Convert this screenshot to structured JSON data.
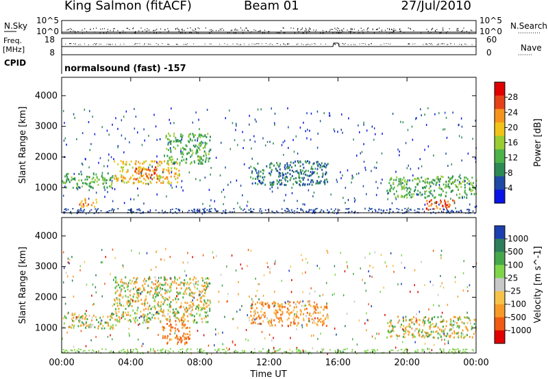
{
  "header": {
    "station": "King Salmon (fitACF)",
    "beam": "Beam 01",
    "date": "27/Jul/2010"
  },
  "strips": {
    "nsky_label": "N.Sky",
    "nsky_tick_top": "10^5",
    "nsky_tick_bottom": "10^0",
    "nsearch_label": "N.Search",
    "nsearch_tick_top": "10^5",
    "nsearch_tick_bottom": "10^0",
    "freq_label": "Freq.",
    "freq_unit": "[MHz]",
    "freq_tick_top": "18",
    "freq_tick_bottom": "8",
    "nave_label": "Nave",
    "nave_tick_top": "60",
    "nave_tick_bottom": "0",
    "cpid_label": "CPID",
    "cpid_text": "normalsound (fast) -157"
  },
  "chart_data": [
    {
      "type": "heatmap",
      "title": "",
      "xlabel": "Time UT",
      "ylabel": "Slant Range [km]",
      "x_ticks": [
        "00:00",
        "04:00",
        "08:00",
        "12:00",
        "16:00",
        "20:00",
        "00:00"
      ],
      "xlim_hours": [
        0,
        24
      ],
      "y_ticks": [
        1000,
        2000,
        3000,
        4000
      ],
      "ylim": [
        180,
        4600
      ],
      "grid": false,
      "colorbar": {
        "label": "Power [dB]",
        "ticks": [
          4,
          8,
          12,
          16,
          20,
          24,
          28
        ],
        "range": [
          0,
          32
        ],
        "colors": [
          "#0a14e6",
          "#1f4aa6",
          "#2e8a55",
          "#4cb24a",
          "#9acd32",
          "#f0c418",
          "#f7941d",
          "#e6421a",
          "#e00000"
        ]
      },
      "echo_regions": [
        {
          "t_start": 0.0,
          "t_end": 3.0,
          "range_low": 1000,
          "range_high": 1500,
          "value_typical": 12
        },
        {
          "t_start": 3.0,
          "t_end": 6.8,
          "range_low": 1150,
          "range_high": 1900,
          "value_typical": 20
        },
        {
          "t_start": 4.2,
          "t_end": 5.6,
          "range_low": 1300,
          "range_high": 1700,
          "value_typical": 26
        },
        {
          "t_start": 6.0,
          "t_end": 8.6,
          "range_low": 1800,
          "range_high": 2800,
          "value_typical": 12
        },
        {
          "t_start": 1.0,
          "t_end": 2.0,
          "range_low": 400,
          "range_high": 700,
          "value_typical": 22
        },
        {
          "t_start": 10.9,
          "t_end": 15.4,
          "range_low": 1100,
          "range_high": 1900,
          "value_typical": 8
        },
        {
          "t_start": 18.8,
          "t_end": 24.0,
          "range_low": 700,
          "range_high": 1400,
          "value_typical": 12
        },
        {
          "t_start": 21.0,
          "t_end": 22.8,
          "range_low": 300,
          "range_high": 650,
          "value_typical": 26
        }
      ]
    },
    {
      "type": "heatmap",
      "title": "",
      "xlabel": "Time UT",
      "ylabel": "Slant Range [km]",
      "x_ticks": [
        "00:00",
        "04:00",
        "08:00",
        "12:00",
        "16:00",
        "20:00",
        "00:00"
      ],
      "xlim_hours": [
        0,
        24
      ],
      "y_ticks": [
        1000,
        2000,
        3000,
        4000
      ],
      "ylim": [
        180,
        4600
      ],
      "grid": false,
      "colorbar": {
        "label": "Velocity [m s^-1]",
        "ticks": [
          "1000",
          "500",
          "100",
          "25",
          "-25",
          "-100",
          "-500",
          "-1000"
        ],
        "colors": [
          "#1c3fb0",
          "#2e7d5b",
          "#46a84a",
          "#7fd64a",
          "#c8c8c8",
          "#f6c34a",
          "#f79a28",
          "#f05a12",
          "#e00000"
        ]
      },
      "echo_regions": [
        {
          "t_start": 0.0,
          "t_end": 3.0,
          "range_low": 1000,
          "range_high": 1500,
          "value_typical": 0
        },
        {
          "t_start": 3.0,
          "t_end": 8.6,
          "range_low": 1200,
          "range_high": 2700,
          "value_typical": 0
        },
        {
          "t_start": 5.8,
          "t_end": 7.4,
          "range_low": 500,
          "range_high": 1300,
          "value_typical": -500
        },
        {
          "t_start": 10.9,
          "t_end": 15.4,
          "range_low": 1100,
          "range_high": 1900,
          "value_typical": -300
        },
        {
          "t_start": 18.8,
          "t_end": 24.0,
          "range_low": 700,
          "range_high": 1400,
          "value_typical": 0
        }
      ]
    }
  ],
  "shared_colors": {
    "frame": "#000000",
    "background": "#ffffff",
    "ground_scatter": "#bfbfbf"
  }
}
